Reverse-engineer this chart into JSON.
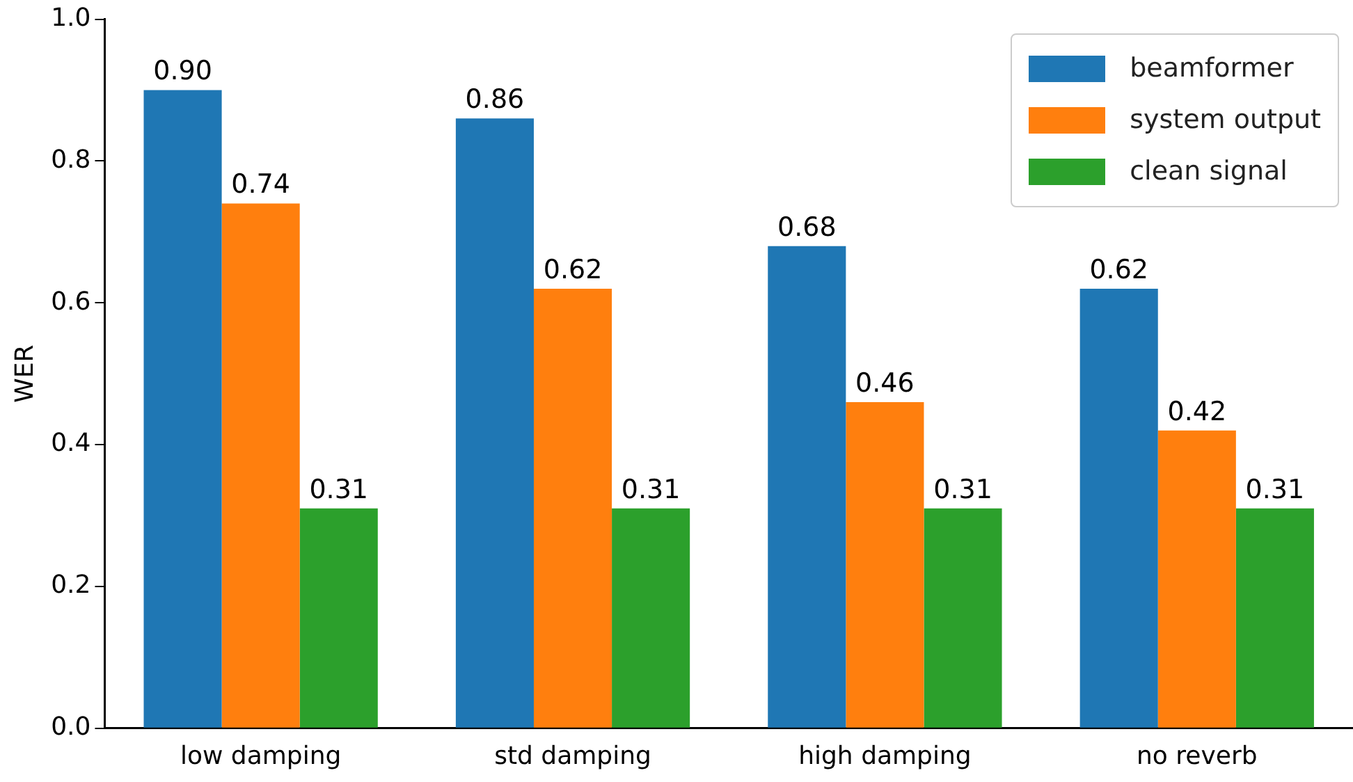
{
  "chart_data": {
    "type": "bar",
    "ylabel": "WER",
    "categories": [
      "low damping",
      "std damping",
      "high damping",
      "no reverb"
    ],
    "series": [
      {
        "name": "beamformer",
        "color": "#1f77b4",
        "values": [
          0.9,
          0.86,
          0.68,
          0.62
        ],
        "value_labels": [
          "0.90",
          "0.86",
          "0.68",
          "0.62"
        ]
      },
      {
        "name": "system output",
        "color": "#ff7f0e",
        "values": [
          0.74,
          0.62,
          0.46,
          0.42
        ],
        "value_labels": [
          "0.74",
          "0.62",
          "0.46",
          "0.42"
        ]
      },
      {
        "name": "clean signal",
        "color": "#2ca02c",
        "values": [
          0.31,
          0.31,
          0.31,
          0.31
        ],
        "value_labels": [
          "0.31",
          "0.31",
          "0.31",
          "0.31"
        ]
      }
    ],
    "ylim": [
      0,
      1.0
    ],
    "yticks": [
      {
        "value": 0,
        "label": "0.0"
      },
      {
        "value": 0.2,
        "label": "0.2"
      },
      {
        "value": 0.4,
        "label": "0.4"
      },
      {
        "value": 0.6,
        "label": "0.6"
      },
      {
        "value": 0.8,
        "label": "0.8"
      },
      {
        "value": 1.0,
        "label": "1.0"
      }
    ],
    "grid": false,
    "legend": "top right"
  }
}
